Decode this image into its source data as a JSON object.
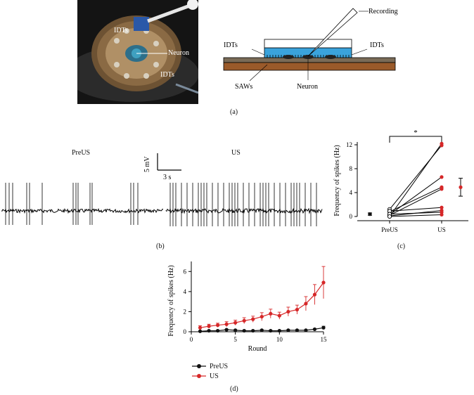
{
  "panel_a": {
    "label": "(a)",
    "photo_labels": {
      "idts_top": "IDTs",
      "neuron": "Neuron",
      "idts_bottom": "IDTs"
    },
    "schematic": {
      "recording": "Recording",
      "idts_left": "IDTs",
      "idts_right": "IDTs",
      "saws": "SAWs",
      "neuron": "Neuron"
    }
  },
  "panel_b": {
    "label": "(b)",
    "preus_label": "PreUS",
    "us_label": "US",
    "scale_v": "5 mV",
    "scale_t": "3 s"
  },
  "panel_c": {
    "label": "(c)",
    "significance": "*",
    "chart_data": {
      "type": "scatter",
      "categories": [
        "PreUS",
        "US"
      ],
      "ylabel": "Frequency of spikes (Hz)",
      "ylim": [
        0,
        12
      ],
      "yticks": [
        0,
        4,
        8,
        12
      ],
      "pairs": [
        [
          0.0,
          12.2
        ],
        [
          1.2,
          11.9
        ],
        [
          0.3,
          6.6
        ],
        [
          0.8,
          4.9
        ],
        [
          0.2,
          4.6
        ],
        [
          0.9,
          1.5
        ],
        [
          0.1,
          1.0
        ],
        [
          0.4,
          0.7
        ],
        [
          0.0,
          0.3
        ]
      ],
      "means": [
        {
          "x": "PreUS",
          "mean": 0.4,
          "err": 0.2
        },
        {
          "x": "US",
          "mean": 4.9,
          "err": 1.5
        }
      ],
      "colors": {
        "preus": "#111111",
        "us": "#d62728"
      }
    }
  },
  "panel_d": {
    "label": "(d)",
    "chart_data": {
      "type": "line",
      "xlabel": "Round",
      "ylabel": "Frequency of spikes (Hz)",
      "xlim": [
        0,
        15
      ],
      "ylim": [
        0,
        7
      ],
      "xticks": [
        0,
        5,
        10,
        15
      ],
      "yticks": [
        0,
        2,
        4,
        6
      ],
      "x": [
        1,
        2,
        3,
        4,
        5,
        6,
        7,
        8,
        9,
        10,
        11,
        12,
        13,
        14,
        15
      ],
      "series": [
        {
          "name": "PreUS",
          "color": "#111111",
          "values": [
            0.05,
            0.1,
            0.1,
            0.2,
            0.15,
            0.1,
            0.1,
            0.15,
            0.1,
            0.1,
            0.15,
            0.15,
            0.15,
            0.25,
            0.4
          ],
          "errors": [
            0.05,
            0.05,
            0.05,
            0.05,
            0.05,
            0.05,
            0.05,
            0.05,
            0.05,
            0.05,
            0.05,
            0.05,
            0.05,
            0.05,
            0.15
          ]
        },
        {
          "name": "US",
          "color": "#d62728",
          "values": [
            0.4,
            0.55,
            0.65,
            0.75,
            0.9,
            1.1,
            1.25,
            1.5,
            1.8,
            1.6,
            2.0,
            2.2,
            2.8,
            3.7,
            4.9
          ],
          "errors": [
            0.2,
            0.2,
            0.2,
            0.25,
            0.25,
            0.3,
            0.3,
            0.4,
            0.45,
            0.35,
            0.45,
            0.45,
            0.7,
            1.0,
            1.6
          ]
        }
      ]
    }
  }
}
